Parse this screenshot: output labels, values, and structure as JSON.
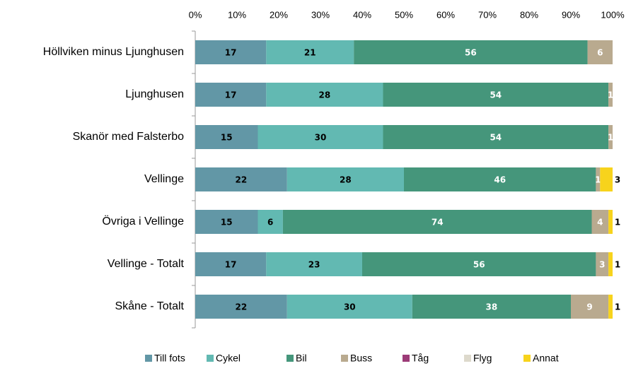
{
  "chart_data": {
    "type": "stacked-barh",
    "categories": [
      "Höllviken minus Ljunghusen",
      "Ljunghusen",
      "Skanör med Falsterbo",
      "Vellinge",
      "Övriga i Vellinge",
      "Vellinge - Totalt",
      "Skåne - Totalt"
    ],
    "series": [
      {
        "name": "Till fots",
        "color": "#6297a6",
        "values": [
          17,
          17,
          15,
          22,
          15,
          17,
          22
        ]
      },
      {
        "name": "Cykel",
        "color": "#62b9b2",
        "values": [
          21,
          28,
          30,
          28,
          6,
          23,
          30
        ]
      },
      {
        "name": "Bil",
        "color": "#45967b",
        "values": [
          56,
          54,
          54,
          46,
          74,
          56,
          38
        ]
      },
      {
        "name": "Buss",
        "color": "#b9aa8f",
        "values": [
          6,
          1,
          1,
          1,
          4,
          3,
          9
        ]
      },
      {
        "name": "Tåg",
        "color": "#9c3b77",
        "values": [
          0,
          0,
          0,
          0,
          0,
          0,
          0
        ]
      },
      {
        "name": "Flyg",
        "color": "#ddd9cc",
        "values": [
          0,
          0,
          0,
          0,
          0,
          0,
          0
        ]
      },
      {
        "name": "Annat",
        "color": "#f7d31c",
        "values": [
          0,
          0,
          0,
          3,
          1,
          1,
          1
        ]
      }
    ],
    "xlim": [
      0,
      100
    ],
    "xticks": [
      {
        "value": 0,
        "label": "0%"
      },
      {
        "value": 10,
        "label": "10%"
      },
      {
        "value": 20,
        "label": "20%"
      },
      {
        "value": 30,
        "label": "30%"
      },
      {
        "value": 40,
        "label": "40%"
      },
      {
        "value": 50,
        "label": "50%"
      },
      {
        "value": 60,
        "label": "60%"
      },
      {
        "value": 70,
        "label": "70%"
      },
      {
        "value": 80,
        "label": "80%"
      },
      {
        "value": 90,
        "label": "90%"
      },
      {
        "value": 100,
        "label": "100%"
      }
    ]
  }
}
